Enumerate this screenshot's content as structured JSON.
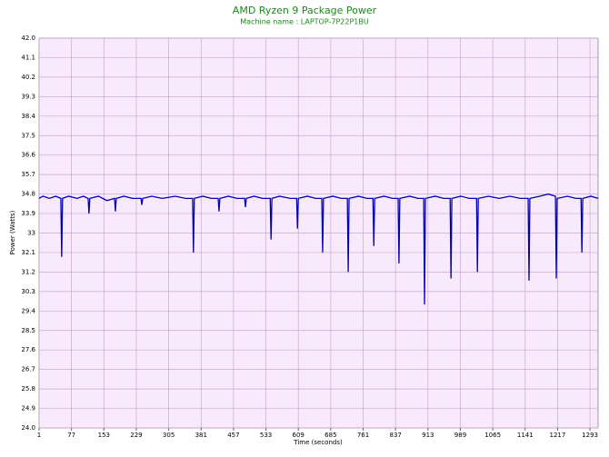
{
  "chart_data": {
    "type": "line",
    "title": "AMD Ryzen 9 Package Power",
    "subtitle": "Machine name : LAPTOP-7P22P1BU",
    "x_label": "Time (seconds)",
    "y_label": "Power (Watts)",
    "xlim": [
      1,
      1312
    ],
    "xticks": [
      1,
      77,
      153,
      229,
      305,
      381,
      457,
      533,
      609,
      685,
      761,
      837,
      913,
      989,
      1065,
      1141,
      1217,
      1293
    ],
    "ylim": [
      24,
      42
    ],
    "yticks": [
      {
        "value": 24,
        "label": "24.0"
      },
      24.9,
      25.8,
      26.7,
      27.6,
      28.5,
      29.4,
      30.3,
      31.2,
      32.1,
      33.0,
      33.9,
      34.8,
      35.7,
      36.6,
      37.5,
      38.4,
      39.3,
      40.2,
      41.1,
      {
        "value": 42,
        "label": "42.0"
      }
    ],
    "grid": true,
    "x": [
      1,
      10,
      25,
      40,
      52,
      54,
      56,
      70,
      90,
      105,
      116,
      118,
      120,
      140,
      160,
      178,
      180,
      182,
      200,
      220,
      240,
      242,
      244,
      265,
      290,
      320,
      345,
      361,
      363,
      365,
      385,
      405,
      421,
      423,
      425,
      445,
      465,
      483,
      485,
      487,
      505,
      525,
      543,
      545,
      547,
      565,
      590,
      605,
      607,
      609,
      630,
      650,
      664,
      666,
      668,
      690,
      710,
      724,
      726,
      728,
      750,
      770,
      784,
      786,
      788,
      810,
      830,
      843,
      845,
      847,
      870,
      890,
      903,
      905,
      907,
      930,
      950,
      965,
      967,
      969,
      990,
      1010,
      1027,
      1029,
      1031,
      1055,
      1080,
      1105,
      1130,
      1148,
      1150,
      1152,
      1175,
      1195,
      1212,
      1214,
      1216,
      1240,
      1260,
      1272,
      1274,
      1276,
      1295,
      1312
    ],
    "series": [
      {
        "color": "#0000b4",
        "values": [
          34.6,
          34.7,
          34.6,
          34.7,
          34.6,
          31.9,
          34.6,
          34.7,
          34.6,
          34.7,
          34.6,
          33.9,
          34.6,
          34.7,
          34.5,
          34.6,
          34.0,
          34.6,
          34.7,
          34.6,
          34.6,
          34.3,
          34.6,
          34.7,
          34.6,
          34.7,
          34.6,
          34.6,
          32.1,
          34.6,
          34.7,
          34.6,
          34.6,
          34.0,
          34.6,
          34.7,
          34.6,
          34.6,
          34.2,
          34.6,
          34.7,
          34.6,
          34.6,
          32.7,
          34.6,
          34.7,
          34.6,
          34.6,
          33.2,
          34.6,
          34.7,
          34.6,
          34.6,
          32.1,
          34.6,
          34.7,
          34.6,
          34.6,
          31.2,
          34.6,
          34.7,
          34.6,
          34.6,
          32.4,
          34.6,
          34.7,
          34.6,
          34.6,
          31.6,
          34.6,
          34.7,
          34.6,
          34.6,
          29.7,
          34.6,
          34.7,
          34.6,
          34.6,
          30.9,
          34.6,
          34.7,
          34.6,
          34.6,
          31.2,
          34.6,
          34.7,
          34.6,
          34.7,
          34.6,
          34.6,
          30.8,
          34.6,
          34.7,
          34.8,
          34.7,
          30.9,
          34.6,
          34.7,
          34.6,
          34.6,
          32.1,
          34.6,
          34.7,
          34.6
        ]
      }
    ]
  }
}
